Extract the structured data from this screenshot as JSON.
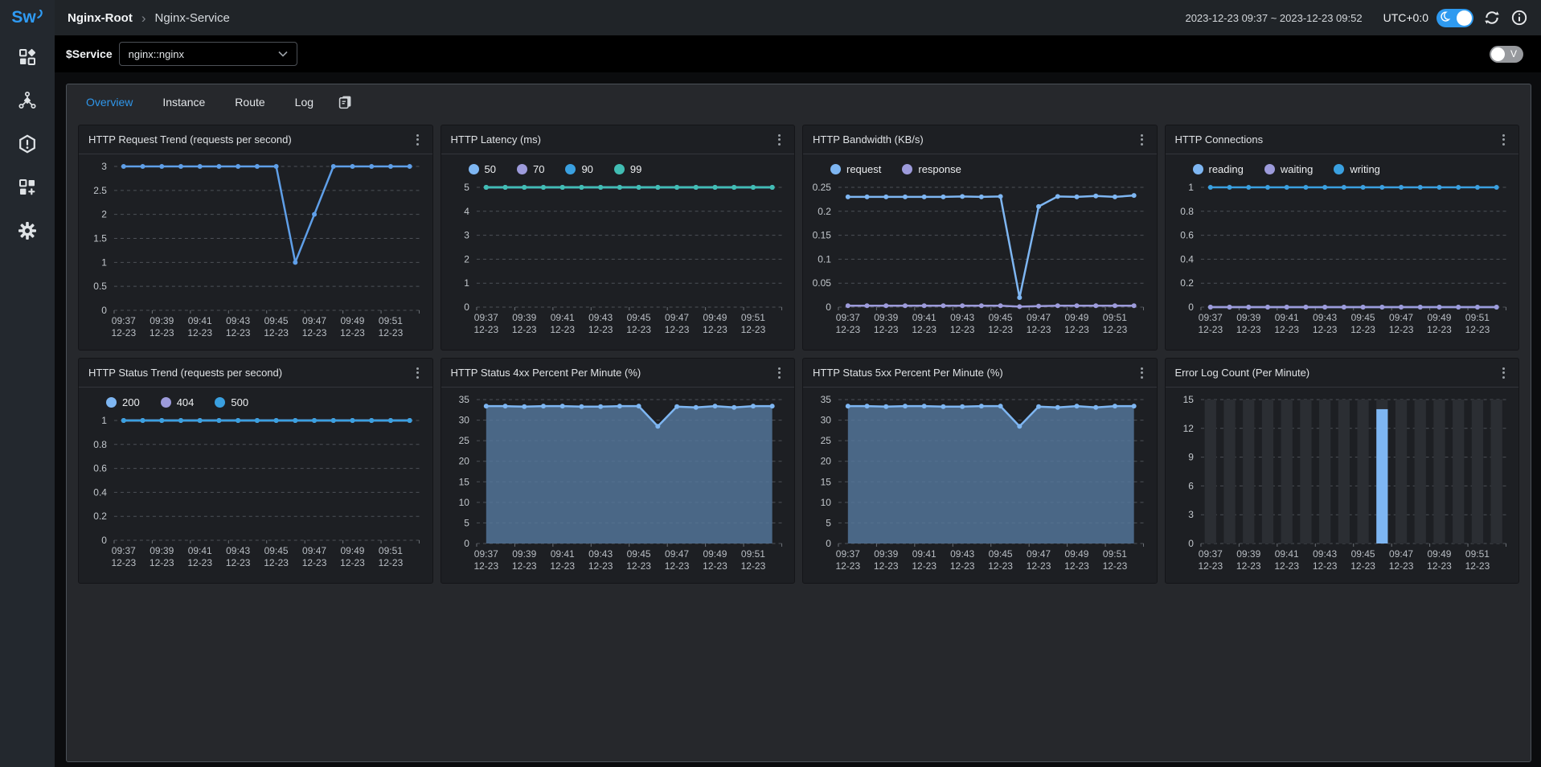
{
  "logo": {
    "text": "Sw"
  },
  "breadcrumb": {
    "root": "Nginx-Root",
    "separator": "›",
    "current": "Nginx-Service"
  },
  "topbar": {
    "time_range": "2023-12-23 09:37 ~ 2023-12-23 09:52",
    "timezone": "UTC+0:0"
  },
  "sidebar": {
    "items": [
      "dashboards-icon",
      "topology-icon",
      "alerting-icon",
      "marketplace-icon",
      "settings-icon"
    ]
  },
  "service_selector": {
    "label": "$Service",
    "value": "nginx::nginx"
  },
  "edit_mode_toggle": {
    "label": "V"
  },
  "tabs": {
    "items": [
      {
        "label": "Overview",
        "active": true
      },
      {
        "label": "Instance",
        "active": false
      },
      {
        "label": "Route",
        "active": false
      },
      {
        "label": "Log",
        "active": false
      }
    ]
  },
  "colors": {
    "accent": "#2f9bf4",
    "series_lightblue": "#7eb6f2",
    "series_purple": "#9d9bdb",
    "series_blue": "#3aa0e0",
    "series_teal": "#41bdb3",
    "area_fill": "#56799f",
    "bar_background": "#2b2e33"
  },
  "chart_data": [
    {
      "title": "HTTP Request Trend (requests per second)",
      "type": "line",
      "x": [
        "09:37",
        "09:38",
        "09:39",
        "09:40",
        "09:41",
        "09:42",
        "09:43",
        "09:44",
        "09:45",
        "09:46",
        "09:47",
        "09:48",
        "09:49",
        "09:50",
        "09:51",
        "09:52"
      ],
      "x_sublabel": "12-23",
      "x_label_every": 2,
      "ylim": [
        0,
        3
      ],
      "ytick_step": 0.5,
      "legend": [],
      "series": [
        {
          "name": "request trend",
          "color": "#5f9fe8",
          "values": [
            3,
            3,
            3,
            3,
            3,
            3,
            3,
            3,
            3,
            1,
            2,
            3,
            3,
            3,
            3,
            3
          ]
        }
      ]
    },
    {
      "title": "HTTP Latency (ms)",
      "type": "line",
      "x": [
        "09:37",
        "09:38",
        "09:39",
        "09:40",
        "09:41",
        "09:42",
        "09:43",
        "09:44",
        "09:45",
        "09:46",
        "09:47",
        "09:48",
        "09:49",
        "09:50",
        "09:51",
        "09:52"
      ],
      "x_sublabel": "12-23",
      "x_label_every": 2,
      "ylim": [
        0,
        5
      ],
      "ytick_step": 1,
      "legend": [
        {
          "name": "50",
          "color": "#7eb6f2"
        },
        {
          "name": "70",
          "color": "#9d9bdb"
        },
        {
          "name": "90",
          "color": "#3aa0e0"
        },
        {
          "name": "99",
          "color": "#41bdb3"
        }
      ],
      "series": [
        {
          "name": "50",
          "color": "#7eb6f2",
          "values": [
            5,
            5,
            5,
            5,
            5,
            5,
            5,
            5,
            5,
            5,
            5,
            5,
            5,
            5,
            5,
            5
          ]
        },
        {
          "name": "70",
          "color": "#9d9bdb",
          "values": [
            5,
            5,
            5,
            5,
            5,
            5,
            5,
            5,
            5,
            5,
            5,
            5,
            5,
            5,
            5,
            5
          ]
        },
        {
          "name": "90",
          "color": "#3aa0e0",
          "values": [
            5,
            5,
            5,
            5,
            5,
            5,
            5,
            5,
            5,
            5,
            5,
            5,
            5,
            5,
            5,
            5
          ]
        },
        {
          "name": "99",
          "color": "#41bdb3",
          "values": [
            5,
            5,
            5,
            5,
            5,
            5,
            5,
            5,
            5,
            5,
            5,
            5,
            5,
            5,
            5,
            5
          ]
        }
      ]
    },
    {
      "title": "HTTP Bandwidth (KB/s)",
      "type": "line",
      "x": [
        "09:37",
        "09:38",
        "09:39",
        "09:40",
        "09:41",
        "09:42",
        "09:43",
        "09:44",
        "09:45",
        "09:46",
        "09:47",
        "09:48",
        "09:49",
        "09:50",
        "09:51",
        "09:52"
      ],
      "x_sublabel": "12-23",
      "x_label_every": 2,
      "ylim": [
        0,
        0.25
      ],
      "ytick_step": 0.05,
      "legend": [
        {
          "name": "request",
          "color": "#7eb6f2"
        },
        {
          "name": "response",
          "color": "#9d9bdb"
        }
      ],
      "series": [
        {
          "name": "request",
          "color": "#7eb6f2",
          "values": [
            0.23,
            0.23,
            0.23,
            0.23,
            0.23,
            0.23,
            0.231,
            0.23,
            0.231,
            0.02,
            0.21,
            0.231,
            0.23,
            0.232,
            0.23,
            0.233
          ]
        },
        {
          "name": "response",
          "color": "#9d9bdb",
          "values": [
            0.003,
            0.003,
            0.003,
            0.003,
            0.003,
            0.003,
            0.003,
            0.003,
            0.003,
            0.001,
            0.002,
            0.003,
            0.003,
            0.003,
            0.003,
            0.003
          ]
        }
      ]
    },
    {
      "title": "HTTP Connections",
      "type": "line",
      "x": [
        "09:37",
        "09:38",
        "09:39",
        "09:40",
        "09:41",
        "09:42",
        "09:43",
        "09:44",
        "09:45",
        "09:46",
        "09:47",
        "09:48",
        "09:49",
        "09:50",
        "09:51",
        "09:52"
      ],
      "x_sublabel": "12-23",
      "x_label_every": 2,
      "ylim": [
        0,
        1
      ],
      "ytick_step": 0.2,
      "legend": [
        {
          "name": "reading",
          "color": "#7eb6f2"
        },
        {
          "name": "waiting",
          "color": "#9d9bdb"
        },
        {
          "name": "writing",
          "color": "#3aa0e0"
        }
      ],
      "series": [
        {
          "name": "reading",
          "color": "#7eb6f2",
          "values": [
            0,
            0,
            0,
            0,
            0,
            0,
            0,
            0,
            0,
            0,
            0,
            0,
            0,
            0,
            0,
            0
          ]
        },
        {
          "name": "waiting",
          "color": "#9d9bdb",
          "values": [
            0,
            0,
            0,
            0,
            0,
            0,
            0,
            0,
            0,
            0,
            0,
            0,
            0,
            0,
            0,
            0
          ]
        },
        {
          "name": "writing",
          "color": "#3aa0e0",
          "values": [
            1,
            1,
            1,
            1,
            1,
            1,
            1,
            1,
            1,
            1,
            1,
            1,
            1,
            1,
            1,
            1
          ]
        }
      ]
    },
    {
      "title": "HTTP Status Trend (requests per second)",
      "type": "line",
      "x": [
        "09:37",
        "09:38",
        "09:39",
        "09:40",
        "09:41",
        "09:42",
        "09:43",
        "09:44",
        "09:45",
        "09:46",
        "09:47",
        "09:48",
        "09:49",
        "09:50",
        "09:51",
        "09:52"
      ],
      "x_sublabel": "12-23",
      "x_label_every": 2,
      "ylim": [
        0,
        1
      ],
      "ytick_step": 0.2,
      "legend": [
        {
          "name": "200",
          "color": "#7eb6f2"
        },
        {
          "name": "404",
          "color": "#9d9bdb"
        },
        {
          "name": "500",
          "color": "#3aa0e0"
        }
      ],
      "series": [
        {
          "name": "200",
          "color": "#7eb6f2",
          "values": [
            1,
            1,
            1,
            1,
            1,
            1,
            1,
            1,
            1,
            1,
            1,
            1,
            1,
            1,
            1,
            1
          ]
        },
        {
          "name": "404",
          "color": "#9d9bdb",
          "values": [
            1,
            1,
            1,
            1,
            1,
            1,
            1,
            1,
            1,
            1,
            1,
            1,
            1,
            1,
            1,
            1
          ]
        },
        {
          "name": "500",
          "color": "#3aa0e0",
          "values": [
            1,
            1,
            1,
            1,
            1,
            1,
            1,
            1,
            1,
            1,
            1,
            1,
            1,
            1,
            1,
            1
          ]
        }
      ]
    },
    {
      "title": "HTTP Status 4xx Percent Per Minute (%)",
      "type": "area",
      "x": [
        "09:37",
        "09:38",
        "09:39",
        "09:40",
        "09:41",
        "09:42",
        "09:43",
        "09:44",
        "09:45",
        "09:46",
        "09:47",
        "09:48",
        "09:49",
        "09:50",
        "09:51",
        "09:52"
      ],
      "x_sublabel": "12-23",
      "x_label_every": 2,
      "ylim": [
        0,
        35
      ],
      "ytick_step": 5,
      "legend": [],
      "area_fill": "#56799f",
      "series": [
        {
          "name": "4xx percent",
          "color": "#7eb6f2",
          "area": true,
          "values": [
            33.4,
            33.4,
            33.3,
            33.4,
            33.4,
            33.3,
            33.3,
            33.4,
            33.4,
            28.5,
            33.3,
            33.1,
            33.4,
            33.1,
            33.4,
            33.4
          ]
        }
      ]
    },
    {
      "title": "HTTP Status 5xx Percent Per Minute (%)",
      "type": "area",
      "x": [
        "09:37",
        "09:38",
        "09:39",
        "09:40",
        "09:41",
        "09:42",
        "09:43",
        "09:44",
        "09:45",
        "09:46",
        "09:47",
        "09:48",
        "09:49",
        "09:50",
        "09:51",
        "09:52"
      ],
      "x_sublabel": "12-23",
      "x_label_every": 2,
      "ylim": [
        0,
        35
      ],
      "ytick_step": 5,
      "legend": [],
      "area_fill": "#56799f",
      "series": [
        {
          "name": "5xx percent",
          "color": "#7eb6f2",
          "area": true,
          "values": [
            33.4,
            33.4,
            33.3,
            33.4,
            33.4,
            33.3,
            33.3,
            33.4,
            33.4,
            28.5,
            33.3,
            33.1,
            33.4,
            33.1,
            33.4,
            33.4
          ]
        }
      ]
    },
    {
      "title": "Error Log Count (Per Minute)",
      "type": "bar",
      "x": [
        "09:37",
        "09:38",
        "09:39",
        "09:40",
        "09:41",
        "09:42",
        "09:43",
        "09:44",
        "09:45",
        "09:46",
        "09:47",
        "09:48",
        "09:49",
        "09:50",
        "09:51",
        "09:52"
      ],
      "x_sublabel": "12-23",
      "x_label_every": 2,
      "ylim": [
        0,
        15
      ],
      "ytick_step": 3,
      "legend": [],
      "background_bar_color": "#2b2e33",
      "series": [
        {
          "name": "error log count",
          "color": "#7eb6f2",
          "values": [
            0,
            0,
            0,
            0,
            0,
            0,
            0,
            0,
            0,
            14,
            0,
            0,
            0,
            0,
            0,
            0
          ]
        }
      ]
    }
  ]
}
